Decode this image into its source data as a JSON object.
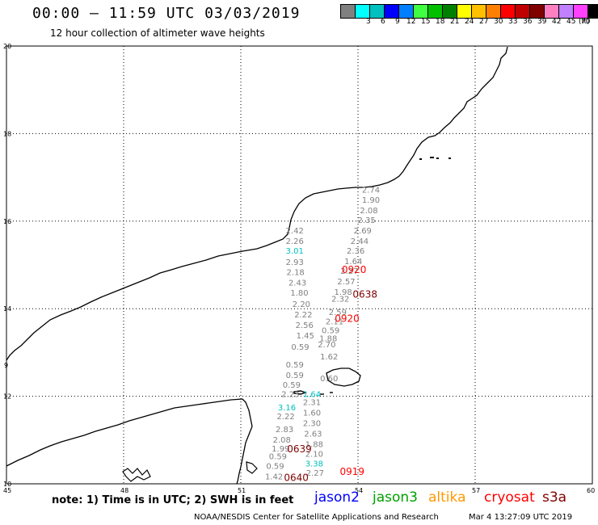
{
  "header": {
    "title": "00:00 — 11:59 UTC 03/03/2019",
    "subtitle": "12 hour collection of altimeter wave heights"
  },
  "legend": {
    "unit": "(ft)",
    "items": [
      {
        "label": "",
        "color": "#808080"
      },
      {
        "label": "3",
        "color": "#00ffff"
      },
      {
        "label": "6",
        "color": "#00c0c0"
      },
      {
        "label": "9",
        "color": "#0000ff"
      },
      {
        "label": "12",
        "color": "#0080ff"
      },
      {
        "label": "15",
        "color": "#40ff40"
      },
      {
        "label": "18",
        "color": "#00c000"
      },
      {
        "label": "21",
        "color": "#008000"
      },
      {
        "label": "24",
        "color": "#ffff00"
      },
      {
        "label": "27",
        "color": "#ffc000"
      },
      {
        "label": "30",
        "color": "#ff8000"
      },
      {
        "label": "33",
        "color": "#ff0000"
      },
      {
        "label": "36",
        "color": "#c00000"
      },
      {
        "label": "39",
        "color": "#800000"
      },
      {
        "label": "42",
        "color": "#ff80c0"
      },
      {
        "label": "45",
        "color": "#c080ff"
      },
      {
        "label": "70",
        "color": "#ff40ff"
      },
      {
        "label": "",
        "color": "#000000"
      }
    ]
  },
  "axes": {
    "y_ticks": [
      "20",
      "18",
      "16",
      "14",
      "12",
      "10"
    ],
    "x_ticks": [
      "45",
      "48",
      "51",
      "54",
      "57",
      "60"
    ],
    "partial_lat_label": "9"
  },
  "observations": [
    {
      "text": "2.74",
      "lon": 54.33,
      "lat": 16.65,
      "color": "#808080"
    },
    {
      "text": "1.90",
      "lon": 54.33,
      "lat": 16.42,
      "color": "#808080"
    },
    {
      "text": "2.08",
      "lon": 54.28,
      "lat": 16.18,
      "color": "#808080"
    },
    {
      "text": "2.35",
      "lon": 54.22,
      "lat": 15.96,
      "color": "#808080"
    },
    {
      "text": "2.69",
      "lon": 54.12,
      "lat": 15.72,
      "color": "#808080"
    },
    {
      "text": "2.44",
      "lon": 54.04,
      "lat": 15.48,
      "color": "#808080"
    },
    {
      "text": "2.36",
      "lon": 53.94,
      "lat": 15.26,
      "color": "#808080"
    },
    {
      "text": "1.64",
      "lon": 53.88,
      "lat": 15.02,
      "color": "#808080"
    },
    {
      "text": "2.27",
      "lon": 53.78,
      "lat": 14.8,
      "color": "#808080"
    },
    {
      "text": "2.57",
      "lon": 53.7,
      "lat": 14.56,
      "color": "#808080"
    },
    {
      "text": "1.98",
      "lon": 53.62,
      "lat": 14.32,
      "color": "#808080"
    },
    {
      "text": "2.32",
      "lon": 53.55,
      "lat": 14.16,
      "color": "#808080"
    },
    {
      "text": "2.59",
      "lon": 53.48,
      "lat": 13.86,
      "color": "#808080"
    },
    {
      "text": "2.11",
      "lon": 53.4,
      "lat": 13.64,
      "color": "#808080"
    },
    {
      "text": "0.59",
      "lon": 53.3,
      "lat": 13.44,
      "color": "#808080"
    },
    {
      "text": "1.88",
      "lon": 53.24,
      "lat": 13.26,
      "color": "#808080"
    },
    {
      "text": "2.70",
      "lon": 53.2,
      "lat": 13.12,
      "color": "#808080"
    },
    {
      "text": "1.62",
      "lon": 53.26,
      "lat": 12.84,
      "color": "#808080"
    },
    {
      "text": "0.60",
      "lon": 53.26,
      "lat": 12.34,
      "color": "#808080"
    },
    {
      "text": "2.42",
      "lon": 52.38,
      "lat": 15.72,
      "color": "#808080"
    },
    {
      "text": "2.26",
      "lon": 52.38,
      "lat": 15.48,
      "color": "#808080"
    },
    {
      "text": "3.01",
      "lon": 52.38,
      "lat": 15.26,
      "color": "#00c0c0"
    },
    {
      "text": "2.93",
      "lon": 52.38,
      "lat": 15.0,
      "color": "#808080"
    },
    {
      "text": "2.18",
      "lon": 52.4,
      "lat": 14.77,
      "color": "#808080"
    },
    {
      "text": "2.43",
      "lon": 52.45,
      "lat": 14.53,
      "color": "#808080"
    },
    {
      "text": "1.80",
      "lon": 52.5,
      "lat": 14.3,
      "color": "#808080"
    },
    {
      "text": "2.20",
      "lon": 52.55,
      "lat": 14.04,
      "color": "#808080"
    },
    {
      "text": "2.22",
      "lon": 52.6,
      "lat": 13.8,
      "color": "#808080"
    },
    {
      "text": "2.56",
      "lon": 52.63,
      "lat": 13.56,
      "color": "#808080"
    },
    {
      "text": "1.45",
      "lon": 52.65,
      "lat": 13.32,
      "color": "#808080"
    },
    {
      "text": "0.59",
      "lon": 52.52,
      "lat": 13.06,
      "color": "#808080"
    },
    {
      "text": "0.59",
      "lon": 52.38,
      "lat": 12.66,
      "color": "#808080"
    },
    {
      "text": "0.59",
      "lon": 52.38,
      "lat": 12.42,
      "color": "#808080"
    },
    {
      "text": "0.59",
      "lon": 52.3,
      "lat": 12.2,
      "color": "#808080"
    },
    {
      "text": "1.64",
      "lon": 52.82,
      "lat": 11.98,
      "color": "#00c0c0"
    },
    {
      "text": "2.23",
      "lon": 52.27,
      "lat": 11.98,
      "color": "#808080"
    },
    {
      "text": "2.31",
      "lon": 52.82,
      "lat": 11.8,
      "color": "#808080"
    },
    {
      "text": "3.16",
      "lon": 52.18,
      "lat": 11.68,
      "color": "#00c0c0"
    },
    {
      "text": "1.60",
      "lon": 52.82,
      "lat": 11.56,
      "color": "#808080"
    },
    {
      "text": "2.22",
      "lon": 52.15,
      "lat": 11.48,
      "color": "#808080"
    },
    {
      "text": "2.30",
      "lon": 52.82,
      "lat": 11.32,
      "color": "#808080"
    },
    {
      "text": "2.83",
      "lon": 52.12,
      "lat": 11.18,
      "color": "#808080"
    },
    {
      "text": "2.63",
      "lon": 52.85,
      "lat": 11.08,
      "color": "#808080"
    },
    {
      "text": "2.08",
      "lon": 52.05,
      "lat": 10.94,
      "color": "#808080"
    },
    {
      "text": "1.88",
      "lon": 52.88,
      "lat": 10.84,
      "color": "#808080"
    },
    {
      "text": "1.99",
      "lon": 52.02,
      "lat": 10.74,
      "color": "#808080"
    },
    {
      "text": "2.10",
      "lon": 52.88,
      "lat": 10.62,
      "color": "#808080"
    },
    {
      "text": "0.59",
      "lon": 51.95,
      "lat": 10.56,
      "color": "#808080"
    },
    {
      "text": "3.38",
      "lon": 52.88,
      "lat": 10.4,
      "color": "#00c0c0"
    },
    {
      "text": "0.59",
      "lon": 51.88,
      "lat": 10.34,
      "color": "#808080"
    },
    {
      "text": "1.42",
      "lon": 51.85,
      "lat": 10.1,
      "color": "#808080"
    },
    {
      "text": "2.27",
      "lon": 52.9,
      "lat": 10.18,
      "color": "#808080"
    }
  ],
  "pass_times": [
    {
      "text": "0920",
      "lon": 53.9,
      "lat": 14.82,
      "color": "#ff0000"
    },
    {
      "text": "0638",
      "lon": 54.18,
      "lat": 14.25,
      "color": "#800000"
    },
    {
      "text": "0920",
      "lon": 53.72,
      "lat": 13.7,
      "color": "#ff0000"
    },
    {
      "text": "0639",
      "lon": 52.5,
      "lat": 10.72,
      "color": "#800000"
    },
    {
      "text": "0919",
      "lon": 53.85,
      "lat": 10.2,
      "color": "#ff0000"
    },
    {
      "text": "0640",
      "lon": 52.42,
      "lat": 10.06,
      "color": "#800000"
    }
  ],
  "footer": {
    "note": "note: 1) Time is in UTC; 2) SWH is in feet",
    "satellites": [
      {
        "name": "jason2",
        "color": "#0000ff"
      },
      {
        "name": "jason3",
        "color": "#00a000"
      },
      {
        "name": "altika",
        "color": "#ff9900"
      },
      {
        "name": "cryosat",
        "color": "#ff0000"
      },
      {
        "name": "s3a",
        "color": "#800000"
      }
    ],
    "credit": "NOAA/NESDIS Center for Satellite Applications and Research",
    "generated": "Mar  4 13:27:09 UTC 2019"
  }
}
